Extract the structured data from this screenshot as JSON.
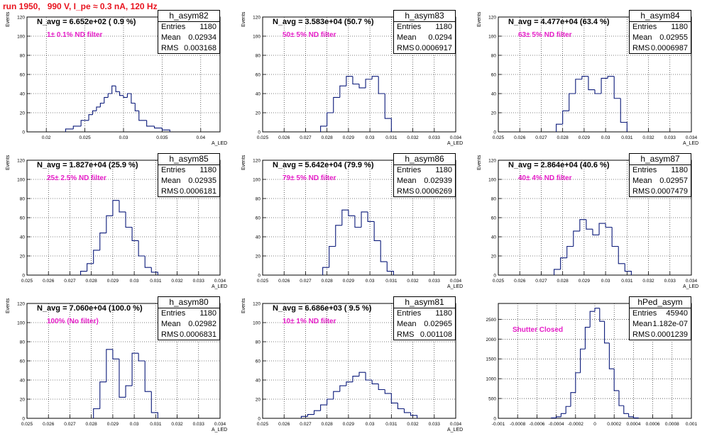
{
  "page": {
    "title": "run 1950,   990 V, I_pe ≈ 0.3 nA, 120 Hz"
  },
  "chart_data": [
    {
      "type": "bar",
      "name": "h_asym82",
      "stats": {
        "entries": "1180",
        "mean": "0.02934",
        "rms": "0.003168"
      },
      "n_avg": "N_avg = 6.652e+02 ( 0.9 %)",
      "filter": "1± 0.1% ND filter",
      "xlabel": "A_LED",
      "ylabel": "Events",
      "xlim": [
        0.0175,
        0.0425
      ],
      "ylim": [
        0,
        120
      ],
      "xticks": [
        "0.02",
        "0.025",
        "0.03",
        "0.035",
        "0.04"
      ],
      "xtick_values": [
        0.02,
        0.025,
        0.03,
        0.035,
        0.04
      ],
      "yticks": [
        "0",
        "20",
        "40",
        "60",
        "80",
        "100",
        "120"
      ],
      "ytick_values": [
        0,
        20,
        40,
        60,
        80,
        100,
        120
      ],
      "bin_edges": [
        0.0225,
        0.0235,
        0.0245,
        0.0255,
        0.026,
        0.0265,
        0.027,
        0.0275,
        0.028,
        0.0285,
        0.029,
        0.0295,
        0.03,
        0.0305,
        0.031,
        0.0315,
        0.032,
        0.033,
        0.034,
        0.035,
        0.036
      ],
      "values": [
        3,
        6,
        12,
        18,
        22,
        26,
        30,
        36,
        40,
        48,
        42,
        38,
        36,
        40,
        30,
        22,
        12,
        6,
        4,
        2
      ]
    },
    {
      "type": "bar",
      "name": "h_asym83",
      "stats": {
        "entries": "1180",
        "mean": "0.0294",
        "rms": "0.0006917"
      },
      "n_avg": "N_avg = 3.583e+04 (50.7 %)",
      "filter": "50± 5% ND filter",
      "xlabel": "A_LED",
      "ylabel": "Events",
      "xlim": [
        0.025,
        0.034
      ],
      "ylim": [
        0,
        120
      ],
      "xticks": [
        "0.025",
        "0.026",
        "0.027",
        "0.028",
        "0.029",
        "0.03",
        "0.031",
        "0.032",
        "0.033",
        "0.034"
      ],
      "xtick_values": [
        0.025,
        0.026,
        0.027,
        0.028,
        0.029,
        0.03,
        0.031,
        0.032,
        0.033,
        0.034
      ],
      "yticks": [
        "0",
        "20",
        "40",
        "60",
        "80",
        "100",
        "120"
      ],
      "ytick_values": [
        0,
        20,
        40,
        60,
        80,
        100,
        120
      ],
      "bin_edges": [
        0.0277,
        0.028,
        0.0283,
        0.0286,
        0.0289,
        0.0292,
        0.0295,
        0.0298,
        0.0301,
        0.0304,
        0.0307,
        0.031
      ],
      "values": [
        6,
        20,
        36,
        48,
        58,
        50,
        46,
        55,
        58,
        40,
        14
      ]
    },
    {
      "type": "bar",
      "name": "h_asym84",
      "stats": {
        "entries": "1180",
        "mean": "0.02955",
        "rms": "0.0006987"
      },
      "n_avg": "N_avg = 4.477e+04 (63.4 %)",
      "filter": "63± 5% ND filter",
      "xlabel": "A_LED",
      "ylabel": "Events",
      "xlim": [
        0.025,
        0.034
      ],
      "ylim": [
        0,
        120
      ],
      "xticks": [
        "0.025",
        "0.026",
        "0.027",
        "0.028",
        "0.029",
        "0.03",
        "0.031",
        "0.032",
        "0.033",
        "0.034"
      ],
      "xtick_values": [
        0.025,
        0.026,
        0.027,
        0.028,
        0.029,
        0.03,
        0.031,
        0.032,
        0.033,
        0.034
      ],
      "yticks": [
        "0",
        "20",
        "40",
        "60",
        "80",
        "100",
        "120"
      ],
      "ytick_values": [
        0,
        20,
        40,
        60,
        80,
        100,
        120
      ],
      "bin_edges": [
        0.0277,
        0.028,
        0.0283,
        0.0286,
        0.0289,
        0.0292,
        0.0295,
        0.0298,
        0.0301,
        0.0304,
        0.0307,
        0.031
      ],
      "values": [
        8,
        22,
        40,
        55,
        58,
        44,
        40,
        56,
        58,
        35,
        10
      ]
    },
    {
      "type": "bar",
      "name": "h_asym85",
      "stats": {
        "entries": "1180",
        "mean": "0.02935",
        "rms": "0.0006181"
      },
      "n_avg": "N_avg = 1.827e+04 (25.9 %)",
      "filter": "25± 2.5% ND filter",
      "xlabel": "A_LED",
      "ylabel": "Events",
      "xlim": [
        0.025,
        0.034
      ],
      "ylim": [
        0,
        120
      ],
      "xticks": [
        "0.025",
        "0.026",
        "0.027",
        "0.028",
        "0.029",
        "0.03",
        "0.031",
        "0.032",
        "0.033",
        "0.034"
      ],
      "xtick_values": [
        0.025,
        0.026,
        0.027,
        0.028,
        0.029,
        0.03,
        0.031,
        0.032,
        0.033,
        0.034
      ],
      "yticks": [
        "0",
        "20",
        "40",
        "60",
        "80",
        "100",
        "120"
      ],
      "ytick_values": [
        0,
        20,
        40,
        60,
        80,
        100,
        120
      ],
      "bin_edges": [
        0.0275,
        0.0278,
        0.0281,
        0.0284,
        0.0287,
        0.029,
        0.0293,
        0.0296,
        0.0299,
        0.0302,
        0.0305,
        0.0308,
        0.0311
      ],
      "values": [
        4,
        12,
        26,
        44,
        62,
        78,
        66,
        50,
        36,
        20,
        8,
        3
      ]
    },
    {
      "type": "bar",
      "name": "h_asym86",
      "stats": {
        "entries": "1180",
        "mean": "0.02939",
        "rms": "0.0006269"
      },
      "n_avg": "N_avg = 5.642e+04 (79.9 %)",
      "filter": "79± 5% ND filter",
      "xlabel": "A_LED",
      "ylabel": "Events",
      "xlim": [
        0.025,
        0.034
      ],
      "ylim": [
        0,
        120
      ],
      "xticks": [
        "0.025",
        "0.026",
        "0.027",
        "0.028",
        "0.029",
        "0.03",
        "0.031",
        "0.032",
        "0.033",
        "0.034"
      ],
      "xtick_values": [
        0.025,
        0.026,
        0.027,
        0.028,
        0.029,
        0.03,
        0.031,
        0.032,
        0.033,
        0.034
      ],
      "yticks": [
        "0",
        "20",
        "40",
        "60",
        "80",
        "100",
        "120"
      ],
      "ytick_values": [
        0,
        20,
        40,
        60,
        80,
        100,
        120
      ],
      "bin_edges": [
        0.0278,
        0.0281,
        0.0284,
        0.0287,
        0.029,
        0.0293,
        0.0296,
        0.0299,
        0.0302,
        0.0305,
        0.0308,
        0.0311
      ],
      "values": [
        8,
        30,
        52,
        68,
        62,
        50,
        66,
        56,
        36,
        14,
        4
      ]
    },
    {
      "type": "bar",
      "name": "h_asym87",
      "stats": {
        "entries": "1180",
        "mean": "0.02957",
        "rms": "0.0007479"
      },
      "n_avg": "N_avg = 2.864e+04 (40.6 %)",
      "filter": "40± 4% ND filter",
      "xlabel": "A_LED",
      "ylabel": "Events",
      "xlim": [
        0.025,
        0.034
      ],
      "ylim": [
        0,
        120
      ],
      "xticks": [
        "0.025",
        "0.026",
        "0.027",
        "0.028",
        "0.029",
        "0.03",
        "0.031",
        "0.032",
        "0.033",
        "0.034"
      ],
      "xtick_values": [
        0.025,
        0.026,
        0.027,
        0.028,
        0.029,
        0.03,
        0.031,
        0.032,
        0.033,
        0.034
      ],
      "yticks": [
        "0",
        "20",
        "40",
        "60",
        "80",
        "100",
        "120"
      ],
      "ytick_values": [
        0,
        20,
        40,
        60,
        80,
        100,
        120
      ],
      "bin_edges": [
        0.0276,
        0.0279,
        0.0282,
        0.0285,
        0.0288,
        0.0291,
        0.0294,
        0.0297,
        0.03,
        0.0303,
        0.0306,
        0.0309,
        0.0312
      ],
      "values": [
        6,
        18,
        30,
        46,
        58,
        48,
        42,
        54,
        50,
        30,
        12,
        4
      ]
    },
    {
      "type": "bar",
      "name": "h_asym80",
      "stats": {
        "entries": "1180",
        "mean": "0.02982",
        "rms": "0.0006831"
      },
      "n_avg": "N_avg = 7.060e+04 (100.0 %)",
      "filter": "100% (No filter)",
      "xlabel": "A_LED",
      "ylabel": "Events",
      "xlim": [
        0.025,
        0.034
      ],
      "ylim": [
        0,
        120
      ],
      "xticks": [
        "0.025",
        "0.026",
        "0.027",
        "0.028",
        "0.029",
        "0.03",
        "0.031",
        "0.032",
        "0.033",
        "0.034"
      ],
      "xtick_values": [
        0.025,
        0.026,
        0.027,
        0.028,
        0.029,
        0.03,
        0.031,
        0.032,
        0.033,
        0.034
      ],
      "yticks": [
        "0",
        "20",
        "40",
        "60",
        "80",
        "100",
        "120"
      ],
      "ytick_values": [
        0,
        20,
        40,
        60,
        80,
        100,
        120
      ],
      "bin_edges": [
        0.0281,
        0.0284,
        0.0287,
        0.029,
        0.0293,
        0.0296,
        0.0299,
        0.0302,
        0.0305,
        0.0308,
        0.0311
      ],
      "values": [
        10,
        38,
        72,
        62,
        22,
        34,
        68,
        60,
        28,
        6
      ]
    },
    {
      "type": "bar",
      "name": "h_asym81",
      "stats": {
        "entries": "1180",
        "mean": "0.02965",
        "rms": "0.001108"
      },
      "n_avg": "N_avg = 6.686e+03 ( 9.5 %)",
      "filter": "10± 1% ND filter",
      "xlabel": "A_LED",
      "ylabel": "Events",
      "xlim": [
        0.025,
        0.034
      ],
      "ylim": [
        0,
        120
      ],
      "xticks": [
        "0.025",
        "0.026",
        "0.027",
        "0.028",
        "0.029",
        "0.03",
        "0.031",
        "0.032",
        "0.033",
        "0.034"
      ],
      "xtick_values": [
        0.025,
        0.026,
        0.027,
        0.028,
        0.029,
        0.03,
        0.031,
        0.032,
        0.033,
        0.034
      ],
      "yticks": [
        "0",
        "20",
        "40",
        "60",
        "80",
        "100",
        "120"
      ],
      "ytick_values": [
        0,
        20,
        40,
        60,
        80,
        100,
        120
      ],
      "bin_edges": [
        0.0268,
        0.0271,
        0.0274,
        0.0277,
        0.028,
        0.0283,
        0.0286,
        0.0289,
        0.0292,
        0.0295,
        0.0298,
        0.0301,
        0.0304,
        0.0307,
        0.031,
        0.0313,
        0.0316,
        0.0319,
        0.0322
      ],
      "values": [
        2,
        4,
        8,
        14,
        20,
        28,
        34,
        38,
        44,
        48,
        40,
        36,
        30,
        26,
        16,
        10,
        6,
        3
      ]
    },
    {
      "type": "bar",
      "name": "hPed_asym",
      "stats": {
        "entries": "45940",
        "mean": "1.182e-07",
        "rms": "0.0001239"
      },
      "n_avg": "",
      "filter": "Shutter Closed",
      "xlabel": "",
      "ylabel": "",
      "xlim": [
        -0.001,
        0.001
      ],
      "ylim": [
        0,
        2900
      ],
      "xticks": [
        "-0.001",
        "-0.0008",
        "-0.0006",
        "-0.0004",
        "-0.0002",
        "0",
        "0.0002",
        "0.0004",
        "0.0006",
        "0.0008",
        "0.001"
      ],
      "xtick_values": [
        -0.001,
        -0.0008,
        -0.0006,
        -0.0004,
        -0.0002,
        0,
        0.0002,
        0.0004,
        0.0006,
        0.0008,
        0.001
      ],
      "yticks": [
        "0",
        "500",
        "1000",
        "1500",
        "2000",
        "2500"
      ],
      "ytick_values": [
        0,
        500,
        1000,
        1500,
        2000,
        2500
      ],
      "bin_edges": [
        -0.00045,
        -0.0004,
        -0.00035,
        -0.0003,
        -0.00025,
        -0.0002,
        -0.00015,
        -0.0001,
        -5e-05,
        0,
        5e-05,
        0.0001,
        0.00015,
        0.0002,
        0.00025,
        0.0003,
        0.00035,
        0.0004,
        0.00045
      ],
      "values": [
        10,
        40,
        120,
        300,
        650,
        1150,
        1750,
        2300,
        2700,
        2780,
        2450,
        1900,
        1250,
        700,
        320,
        120,
        40,
        10
      ]
    }
  ]
}
